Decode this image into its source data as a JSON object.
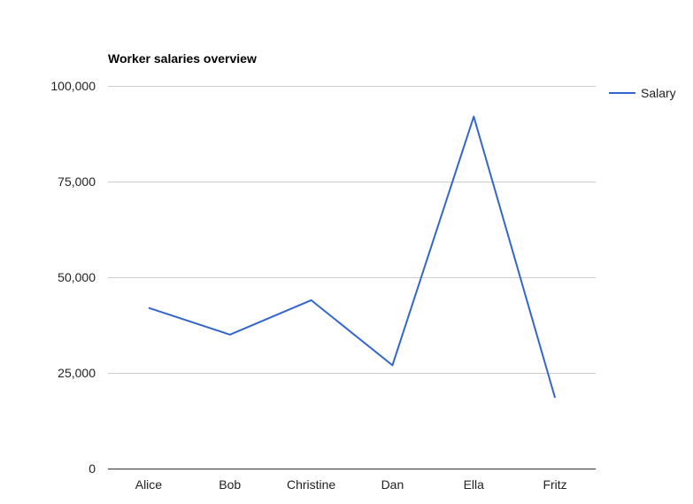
{
  "chart_data": {
    "type": "line",
    "title": "Worker salaries overview",
    "xlabel": "",
    "ylabel": "",
    "categories": [
      "Alice",
      "Bob",
      "Christine",
      "Dan",
      "Ella",
      "Fritz"
    ],
    "series": [
      {
        "name": "Salary",
        "values": [
          42000,
          35000,
          44000,
          27000,
          92000,
          18500
        ],
        "color": "#3366cc"
      }
    ],
    "ylim": [
      0,
      100000
    ],
    "yticks": [
      0,
      25000,
      50000,
      75000,
      100000
    ],
    "ytick_labels": [
      "0",
      "25,000",
      "50,000",
      "75,000",
      "100,000"
    ],
    "grid": true,
    "legend_position": "right"
  }
}
